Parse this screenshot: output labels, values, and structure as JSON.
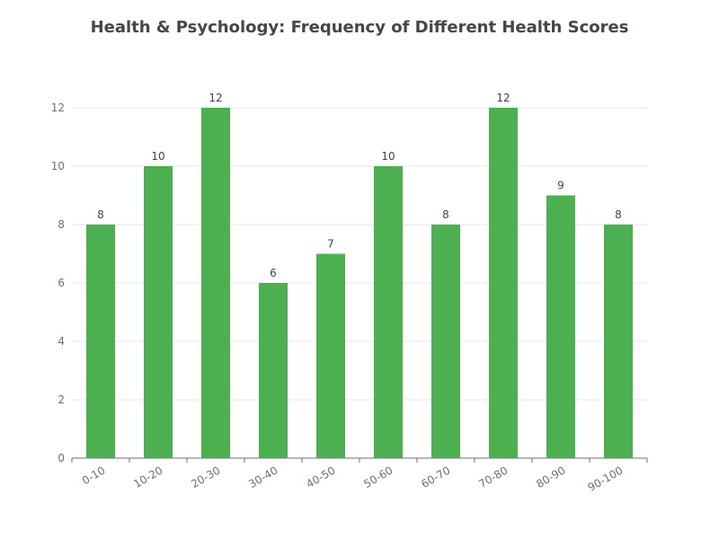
{
  "chart_data": {
    "type": "bar",
    "title": "Health & Psychology: Frequency of Different Health Scores",
    "xlabel": "",
    "ylabel": "",
    "categories": [
      "0-10",
      "10-20",
      "20-30",
      "30-40",
      "40-50",
      "50-60",
      "60-70",
      "70-80",
      "80-90",
      "90-100"
    ],
    "values": [
      8,
      10,
      12,
      6,
      7,
      10,
      8,
      12,
      9,
      8
    ],
    "ylim": [
      0,
      12
    ],
    "yticks": [
      0,
      2,
      4,
      6,
      8,
      10,
      12
    ],
    "grid": true,
    "legend": "none",
    "bar_color": "#4caf50",
    "data_labels": true
  }
}
